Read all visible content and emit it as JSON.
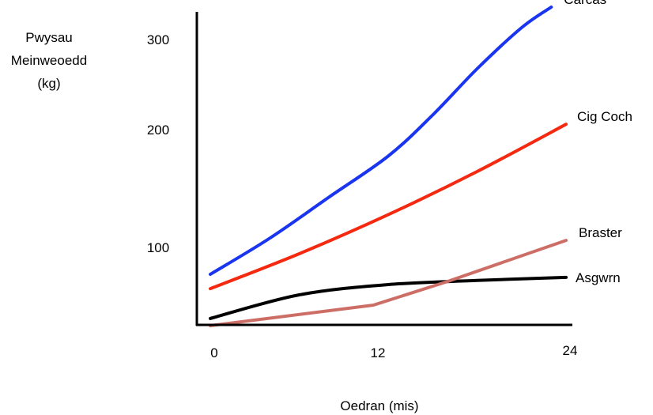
{
  "chart_data": {
    "type": "line",
    "title": "",
    "ylabel_lines": [
      "Pwysau",
      "Meinweoedd",
      "(kg)"
    ],
    "xlabel": "Oedran (mis)",
    "x_ticks": [
      "0",
      "12",
      "24"
    ],
    "y_ticks": [
      "100",
      "200",
      "300"
    ],
    "xlim": [
      0,
      24
    ],
    "ylim": [
      0,
      320
    ],
    "grid": false,
    "series": [
      {
        "name": "Carcas",
        "color": "#1a35f0",
        "x": [
          0,
          4,
          8,
          12,
          15,
          18,
          21,
          23
        ],
        "y": [
          50,
          85,
          125,
          165,
          205,
          250,
          290,
          310
        ]
      },
      {
        "name": "Cig Coch",
        "color": "#f5290f",
        "x": [
          0,
          6,
          12,
          18,
          24
        ],
        "y": [
          36,
          70,
          108,
          150,
          196
        ]
      },
      {
        "name": "Braster",
        "color": "#cd6e66",
        "x": [
          0,
          11,
          16,
          24
        ],
        "y": [
          0,
          20,
          43,
          83
        ]
      },
      {
        "name": "Asgwrn",
        "color": "#000000",
        "x": [
          0,
          6,
          12,
          18,
          24
        ],
        "y": [
          7,
          30,
          40,
          44,
          47
        ]
      }
    ]
  }
}
